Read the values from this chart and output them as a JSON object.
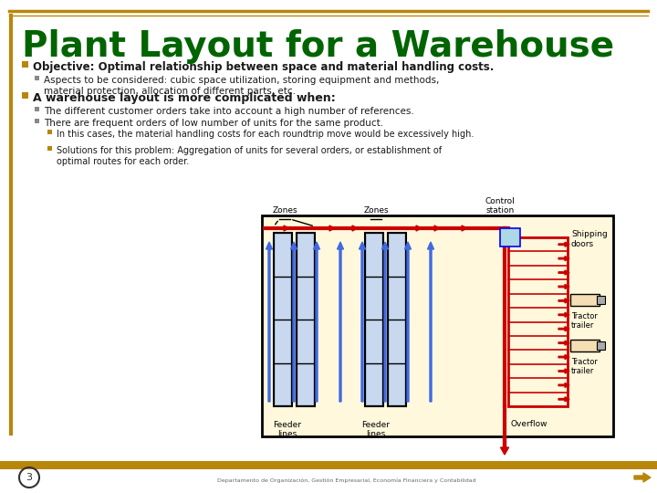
{
  "title": "Plant Layout for a Warehouse",
  "title_color": "#006400",
  "title_fontsize": 28,
  "accent_color": "#B8860B",
  "bg_color": "#FFFFFF",
  "bullet1_bold": "Objective: Optimal relationship between space and material handling costs.",
  "sub1": "Aspects to be considered: cubic space utilization, storing equipment and methods,\nmaterial protection, allocation of different parts, etc.",
  "bullet2_bold": "A warehouse layout is more complicated when:",
  "sub2a": "The different customer orders take into account a high number of references.",
  "sub2b": "There are frequent orders of low number of units for the same product.",
  "sub3a": "In this cases, the material handling costs for each roundtrip move would be excessively high.",
  "sub3b": "Solutions for this problem: Aggregation of units for several orders, or establishment of\noptimal routes for each order.",
  "diagram_bg": "#FFF8DC",
  "diagram_border": "#000000",
  "red_color": "#CC0000",
  "blue_color": "#4169E1",
  "shelf_bg": "#B0C4DE",
  "shelf_border": "#000000"
}
